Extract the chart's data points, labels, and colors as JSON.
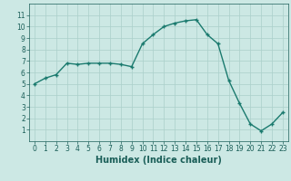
{
  "xlabel": "Humidex (Indice chaleur)",
  "ylabel": "",
  "x": [
    0,
    1,
    2,
    3,
    4,
    5,
    6,
    7,
    8,
    9,
    10,
    11,
    12,
    13,
    14,
    15,
    16,
    17,
    18,
    19,
    20,
    21,
    22,
    23
  ],
  "y": [
    5.0,
    5.5,
    5.8,
    6.8,
    6.7,
    6.8,
    6.8,
    6.8,
    6.7,
    6.5,
    8.5,
    9.3,
    10.0,
    10.3,
    10.5,
    10.6,
    9.3,
    8.5,
    5.3,
    3.3,
    1.5,
    0.9,
    1.5,
    2.5
  ],
  "line_color": "#1a7a6e",
  "marker": "+",
  "marker_size": 3.5,
  "marker_linewidth": 1.0,
  "background_color": "#cce8e4",
  "grid_color": "#aacfca",
  "tick_color": "#1a5e58",
  "label_color": "#1a5e58",
  "xlim": [
    -0.5,
    23.5
  ],
  "ylim": [
    0,
    12
  ],
  "yticks": [
    1,
    2,
    3,
    4,
    5,
    6,
    7,
    8,
    9,
    10,
    11
  ],
  "xticks": [
    0,
    1,
    2,
    3,
    4,
    5,
    6,
    7,
    8,
    9,
    10,
    11,
    12,
    13,
    14,
    15,
    16,
    17,
    18,
    19,
    20,
    21,
    22,
    23
  ],
  "tick_fontsize": 5.5,
  "label_fontsize": 7.0,
  "linewidth": 1.0
}
